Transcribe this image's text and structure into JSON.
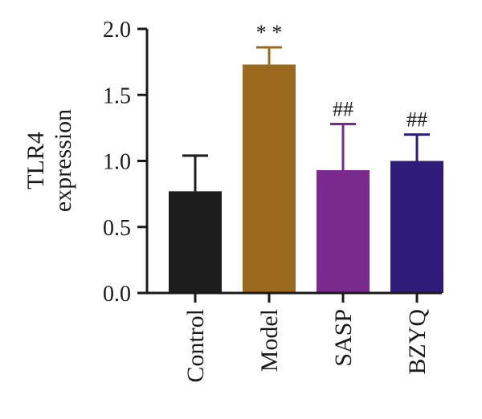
{
  "chart_data": {
    "type": "bar",
    "ylabel": [
      "TLR4",
      "expression"
    ],
    "xlabel": "",
    "ylim": [
      0,
      2.0
    ],
    "yticks": [
      "0.0",
      "0.5",
      "1.0",
      "1.5",
      "2.0"
    ],
    "grid": false,
    "categories": [
      "Control",
      "Model",
      "SASP",
      "BZYQ"
    ],
    "values": [
      0.77,
      1.73,
      0.93,
      1.0
    ],
    "errors": [
      0.27,
      0.13,
      0.35,
      0.2
    ],
    "colors": [
      "#1d1d1d",
      "#9c6a1f",
      "#7a2a8d",
      "#2e1d78"
    ],
    "annotations": [
      "",
      "**",
      "##",
      "##"
    ]
  }
}
